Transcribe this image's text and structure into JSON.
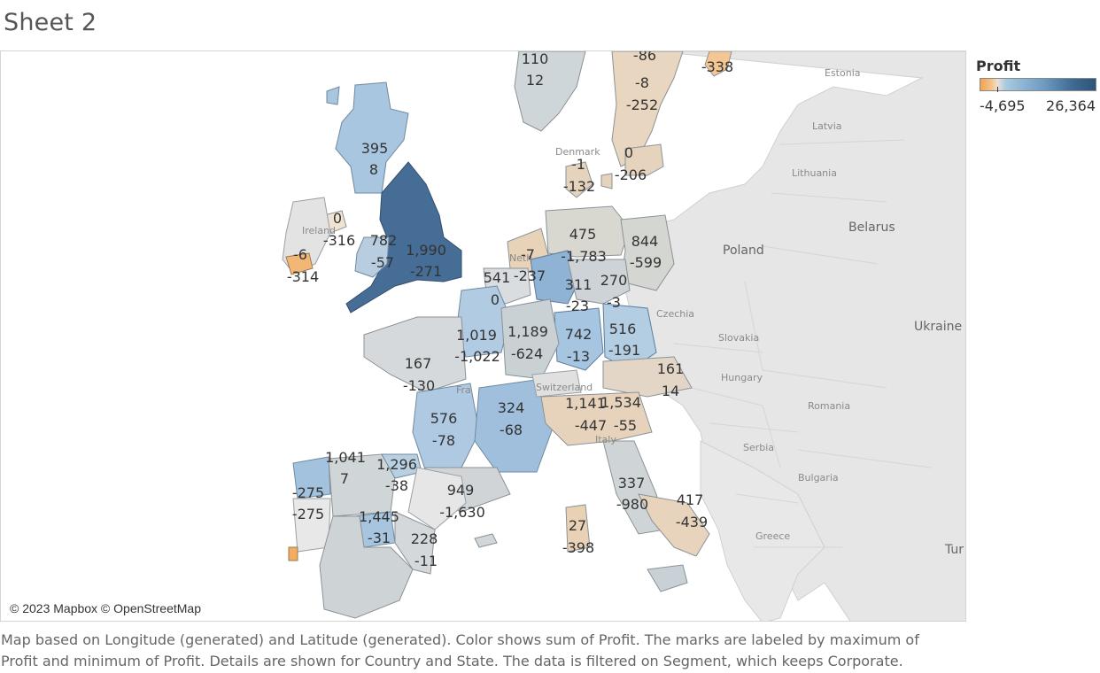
{
  "sheet": {
    "title": "Sheet 2"
  },
  "legend": {
    "title": "Profit",
    "min_label": "-4,695",
    "max_label": "26,364",
    "colors": [
      "#f1a34f",
      "#e9e0d6",
      "#a9c9e0",
      "#2f5478"
    ]
  },
  "map": {
    "attribution": "© 2023 Mapbox © OpenStreetMap",
    "place_labels": [
      {
        "id": "estonia",
        "text": "Estonia"
      },
      {
        "id": "latvia",
        "text": "Latvia"
      },
      {
        "id": "lithuania",
        "text": "Lithuania"
      },
      {
        "id": "belarus",
        "text": "Belarus"
      },
      {
        "id": "poland",
        "text": "Poland"
      },
      {
        "id": "ukraine",
        "text": "Ukraine"
      },
      {
        "id": "czechia",
        "text": "Czechia"
      },
      {
        "id": "slovakia",
        "text": "Slovakia"
      },
      {
        "id": "hungary",
        "text": "Hungary"
      },
      {
        "id": "romania",
        "text": "Romania"
      },
      {
        "id": "serbia",
        "text": "Serbia"
      },
      {
        "id": "bulgaria",
        "text": "Bulgaria"
      },
      {
        "id": "greece",
        "text": "Greece"
      },
      {
        "id": "turkey",
        "text": "Tur"
      },
      {
        "id": "denmark",
        "text": "Denmark"
      },
      {
        "id": "ireland",
        "text": "Ireland"
      },
      {
        "id": "netherlands",
        "text": "Neth"
      },
      {
        "id": "france",
        "text": "Fra"
      },
      {
        "id": "switzerland",
        "text": "Switzerland"
      },
      {
        "id": "italy",
        "text": "Italy"
      }
    ],
    "marks": [
      {
        "id": "norway-1",
        "max": "110",
        "min": "12"
      },
      {
        "id": "sweden-n",
        "max": "-86",
        "min": ""
      },
      {
        "id": "sweden-mid",
        "max": "-8",
        "min": "-252"
      },
      {
        "id": "finland",
        "max": "-338",
        "min": ""
      },
      {
        "id": "scotland",
        "max": "395",
        "min": "8"
      },
      {
        "id": "denmark-1",
        "max": "-1",
        "min": "-132"
      },
      {
        "id": "denmark-2",
        "max": "0",
        "min": "-206"
      },
      {
        "id": "n-ireland",
        "max": "0",
        "min": "-316"
      },
      {
        "id": "wales",
        "max": "782",
        "min": "-57"
      },
      {
        "id": "england",
        "max": "1,990",
        "min": "-271"
      },
      {
        "id": "ireland",
        "max": "-6",
        "min": "-314"
      },
      {
        "id": "de-north",
        "max": "475",
        "min": ""
      },
      {
        "id": "de-berlin",
        "max": "844",
        "min": "-599"
      },
      {
        "id": "nl-1",
        "max": "-7",
        "min": ""
      },
      {
        "id": "de-nrw",
        "max": "-1,783",
        "min": ""
      },
      {
        "id": "nl-2",
        "max": "541",
        "min": "-237"
      },
      {
        "id": "be",
        "max": "0",
        "min": ""
      },
      {
        "id": "de-hessen",
        "max": "311",
        "min": "-23"
      },
      {
        "id": "de-sachsen",
        "max": "270",
        "min": "-3"
      },
      {
        "id": "fr-idf",
        "max": "1,019",
        "min": "-1,022"
      },
      {
        "id": "fr-east",
        "max": "1,189",
        "min": "-624"
      },
      {
        "id": "de-bw",
        "max": "742",
        "min": "-13"
      },
      {
        "id": "de-bayern",
        "max": "516",
        "min": "-191"
      },
      {
        "id": "at",
        "max": "161",
        "min": "14"
      },
      {
        "id": "fr-west",
        "max": "167",
        "min": "-130"
      },
      {
        "id": "fr-sw",
        "max": "576",
        "min": "-78"
      },
      {
        "id": "fr-center",
        "max": "324",
        "min": "-68"
      },
      {
        "id": "it-north-1",
        "max": "1,141",
        "min": "-447"
      },
      {
        "id": "it-north-2",
        "max": "1,534",
        "min": "-55"
      },
      {
        "id": "es-galicia",
        "max": "1,041",
        "min": "7"
      },
      {
        "id": "es-basque",
        "max": "1,296",
        "min": "-38"
      },
      {
        "id": "es-catalonia",
        "max": "949",
        "min": "-1,630"
      },
      {
        "id": "pt",
        "max": "-275",
        "min": "-275"
      },
      {
        "id": "es-madrid",
        "max": "1,445",
        "min": "-31"
      },
      {
        "id": "es-valencia",
        "max": "228",
        "min": "-11"
      },
      {
        "id": "it-lazio",
        "max": "337",
        "min": "-980"
      },
      {
        "id": "it-south",
        "max": "417",
        "min": "-439"
      },
      {
        "id": "sardinia",
        "max": "27",
        "min": "-398"
      }
    ]
  },
  "caption": {
    "line1": "Map based on Longitude (generated) and Latitude (generated).  Color shows sum of Profit.  The marks are labeled by maximum of",
    "line2": "Profit and minimum of Profit.  Details are shown for Country and State. The data is filtered on Segment, which keeps Corporate."
  }
}
